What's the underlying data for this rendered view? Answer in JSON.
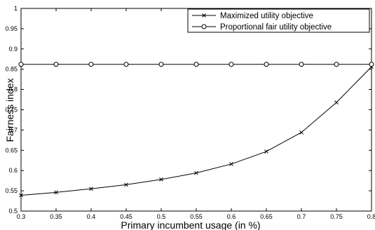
{
  "chart_data": {
    "type": "line",
    "title": "",
    "xlabel": "Primary incumbent usage (in %)",
    "ylabel": "Fairness index",
    "xlim": [
      0.3,
      0.8
    ],
    "ylim": [
      0.5,
      1
    ],
    "x_ticks": [
      "0.3",
      "0.35",
      "0.4",
      "0.45",
      "0.5",
      "0.55",
      "0.6",
      "0.65",
      "0.7",
      "0.75",
      "0.8"
    ],
    "y_ticks": [
      "0.5",
      "0.55",
      "0.6",
      "0.65",
      "0.7",
      "0.75",
      "0.8",
      "0.85",
      "0.9",
      "0.95",
      "1"
    ],
    "grid": false,
    "legend_position": "top-right",
    "x": [
      0.3,
      0.35,
      0.4,
      0.45,
      0.5,
      0.55,
      0.6,
      0.65,
      0.7,
      0.75,
      0.8
    ],
    "series": [
      {
        "name": "Maximized utility objective",
        "marker": "x",
        "color": "#000000",
        "values": [
          0.539,
          0.546,
          0.555,
          0.565,
          0.578,
          0.594,
          0.616,
          0.647,
          0.694,
          0.768,
          0.856
        ]
      },
      {
        "name": "Proportional fair utility objective",
        "marker": "circle",
        "color": "#000000",
        "values": [
          0.862,
          0.862,
          0.862,
          0.862,
          0.862,
          0.862,
          0.862,
          0.862,
          0.862,
          0.862,
          0.862
        ]
      }
    ]
  }
}
